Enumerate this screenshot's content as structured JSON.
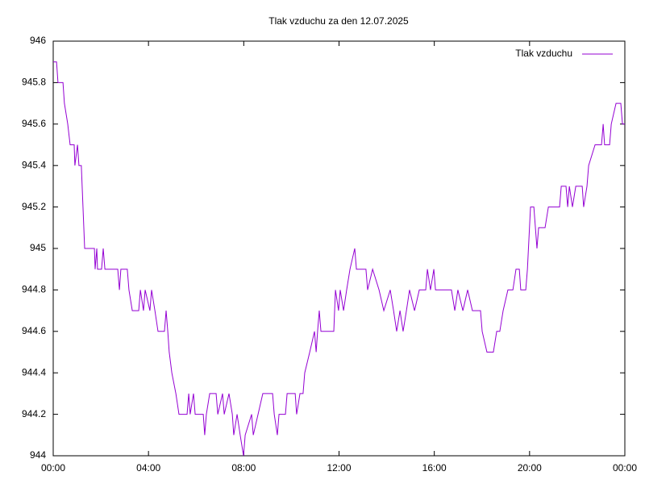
{
  "chart_data": {
    "type": "line",
    "title": "Tlak vzduchu za den 12.07.2025",
    "x": [
      0,
      0.14,
      0.2,
      0.41,
      0.47,
      0.61,
      0.71,
      0.88,
      0.91,
      1.02,
      1.08,
      1.18,
      1.25,
      1.32,
      1.73,
      1.76,
      1.83,
      1.86,
      2.03,
      2.1,
      2.17,
      2.71,
      2.78,
      2.84,
      3.11,
      3.18,
      3.32,
      3.59,
      3.66,
      3.79,
      3.86,
      4.06,
      4.13,
      4.27,
      4.4,
      4.67,
      4.74,
      4.81,
      4.87,
      4.98,
      5.15,
      5.28,
      5.62,
      5.69,
      5.75,
      5.89,
      5.96,
      6.3,
      6.36,
      6.43,
      6.57,
      6.84,
      6.91,
      7.11,
      7.18,
      7.38,
      7.52,
      7.58,
      7.72,
      7.85,
      7.99,
      8.06,
      8.33,
      8.4,
      8.6,
      8.8,
      9.21,
      9.28,
      9.41,
      9.48,
      9.75,
      9.82,
      10.16,
      10.22,
      10.36,
      10.49,
      10.56,
      10.77,
      10.97,
      11.04,
      11.1,
      11.17,
      11.24,
      11.78,
      11.85,
      11.98,
      12.05,
      12.19,
      12.32,
      12.46,
      12.66,
      12.73,
      13.13,
      13.2,
      13.41,
      13.68,
      13.88,
      14.15,
      14.29,
      14.42,
      14.56,
      14.69,
      14.83,
      14.96,
      15.17,
      15.37,
      15.64,
      15.71,
      15.84,
      15.98,
      16.05,
      16.72,
      16.86,
      16.99,
      17.2,
      17.4,
      17.6,
      17.94,
      18.01,
      18.21,
      18.48,
      18.62,
      18.75,
      18.89,
      19.09,
      19.3,
      19.43,
      19.57,
      19.63,
      19.84,
      19.91,
      20.04,
      20.18,
      20.31,
      20.38,
      20.65,
      20.79,
      21.26,
      21.33,
      21.53,
      21.6,
      21.67,
      21.8,
      21.94,
      22.21,
      22.27,
      22.41,
      22.48,
      22.75,
      23.02,
      23.09,
      23.15,
      23.36,
      23.43,
      23.63,
      23.83,
      23.9,
      24
    ],
    "series": [
      {
        "name": "Tlak vzduchu",
        "color": "#9400d3",
        "values": [
          945.9,
          945.9,
          945.8,
          945.8,
          945.7,
          945.6,
          945.5,
          945.5,
          945.4,
          945.5,
          945.4,
          945.4,
          945.2,
          945,
          945,
          944.9,
          945,
          944.9,
          944.9,
          945,
          944.9,
          944.9,
          944.8,
          944.9,
          944.9,
          944.8,
          944.7,
          944.7,
          944.8,
          944.7,
          944.8,
          944.7,
          944.8,
          944.7,
          944.6,
          944.6,
          944.7,
          944.6,
          944.5,
          944.4,
          944.3,
          944.2,
          944.2,
          944.3,
          944.2,
          944.3,
          944.2,
          944.2,
          944.1,
          944.2,
          944.3,
          944.3,
          944.2,
          944.3,
          944.2,
          944.3,
          944.2,
          944.1,
          944.2,
          944.1,
          944,
          944.1,
          944.2,
          944.1,
          944.2,
          944.3,
          944.3,
          944.2,
          944.1,
          944.2,
          944.2,
          944.3,
          944.3,
          944.2,
          944.3,
          944.3,
          944.4,
          944.5,
          944.6,
          944.5,
          944.6,
          944.7,
          944.6,
          944.6,
          944.8,
          944.7,
          944.8,
          944.7,
          944.8,
          944.9,
          945,
          944.9,
          944.9,
          944.8,
          944.9,
          944.8,
          944.7,
          944.8,
          944.7,
          944.6,
          944.7,
          944.6,
          944.7,
          944.8,
          944.7,
          944.8,
          944.8,
          944.9,
          944.8,
          944.9,
          944.8,
          944.8,
          944.7,
          944.8,
          944.7,
          944.8,
          944.7,
          944.7,
          944.6,
          944.5,
          944.5,
          944.6,
          944.6,
          944.7,
          944.8,
          944.8,
          944.9,
          944.9,
          944.8,
          944.8,
          944.9,
          945.2,
          945.2,
          945,
          945.1,
          945.1,
          945.2,
          945.2,
          945.3,
          945.3,
          945.2,
          945.3,
          945.2,
          945.3,
          945.3,
          945.2,
          945.3,
          945.4,
          945.5,
          945.5,
          945.6,
          945.5,
          945.5,
          945.6,
          945.7,
          945.7,
          945.6,
          945.6
        ]
      }
    ],
    "xlim": [
      0,
      24
    ],
    "xticks": [
      {
        "value": 0,
        "label": "00:00"
      },
      {
        "value": 4,
        "label": "04:00"
      },
      {
        "value": 8,
        "label": "08:00"
      },
      {
        "value": 12,
        "label": "12:00"
      },
      {
        "value": 16,
        "label": "16:00"
      },
      {
        "value": 20,
        "label": "20:00"
      },
      {
        "value": 24,
        "label": "00:00"
      }
    ],
    "ylim": [
      944,
      946
    ],
    "yticks": [
      944,
      944.2,
      944.4,
      944.6,
      944.8,
      945,
      945.2,
      945.4,
      945.6,
      945.8,
      946
    ],
    "grid": false,
    "legend": "top-right"
  }
}
